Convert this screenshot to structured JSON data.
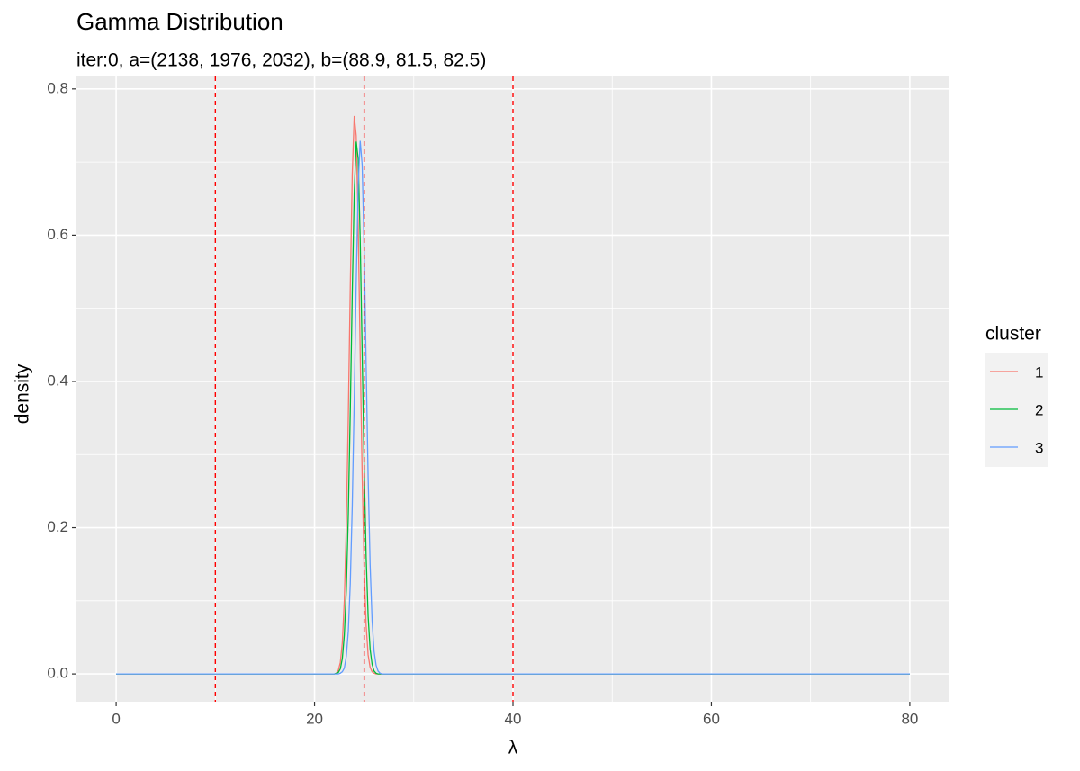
{
  "chart_data": {
    "type": "line",
    "title": "Gamma Distribution",
    "subtitle": "iter:0, a=(2138, 1976, 2032), b=(88.9, 81.5, 82.5)",
    "x_label": "λ",
    "y_label": "density",
    "x": [
      0,
      22,
      22.2,
      22.4,
      22.6,
      22.8,
      23,
      23.2,
      23.4,
      23.6,
      23.8,
      24,
      24.2,
      24.4,
      24.6,
      24.8,
      25,
      25.2,
      25.4,
      25.6,
      25.8,
      26,
      26.2,
      26.4,
      26.6,
      26.8,
      27,
      80
    ],
    "series": [
      {
        "name": "1",
        "color": "#F8766D",
        "values": [
          0,
          0,
          0.001,
          0.005,
          0.016,
          0.043,
          0.1,
          0.202,
          0.351,
          0.528,
          0.683,
          0.763,
          0.736,
          0.612,
          0.439,
          0.271,
          0.145,
          0.066,
          0.026,
          0.009,
          0.003,
          0.001,
          0,
          0,
          0,
          0,
          0,
          0
        ]
      },
      {
        "name": "2",
        "color": "#00BA38",
        "values": [
          0,
          0,
          0.001,
          0.002,
          0.007,
          0.021,
          0.053,
          0.114,
          0.217,
          0.359,
          0.52,
          0.658,
          0.728,
          0.704,
          0.595,
          0.439,
          0.284,
          0.16,
          0.079,
          0.034,
          0.013,
          0.004,
          0.001,
          0,
          0,
          0,
          0,
          0
        ]
      },
      {
        "name": "3",
        "color": "#619CFF",
        "values": [
          0,
          0,
          0,
          0,
          0.001,
          0.003,
          0.008,
          0.024,
          0.058,
          0.123,
          0.23,
          0.375,
          0.535,
          0.668,
          0.729,
          0.696,
          0.58,
          0.423,
          0.27,
          0.15,
          0.073,
          0.031,
          0.012,
          0.004,
          0.001,
          0,
          0,
          0
        ]
      }
    ],
    "vlines": [
      10,
      25,
      40
    ],
    "vline_color": "#ff0000",
    "legend_title": "cluster",
    "legend": "right",
    "xlim": [
      -4,
      84
    ],
    "xticks": [
      0,
      20,
      40,
      60,
      80
    ],
    "x_minor_ticks": [
      10,
      30,
      50,
      70
    ],
    "ylim": [
      -0.038,
      0.817
    ],
    "yticks": [
      {
        "value": 0,
        "label": "0.0"
      },
      0.2,
      0.4,
      0.6,
      0.8
    ],
    "y_minor_ticks": [
      0.1,
      0.3,
      0.5,
      0.7
    ],
    "grid": true
  }
}
